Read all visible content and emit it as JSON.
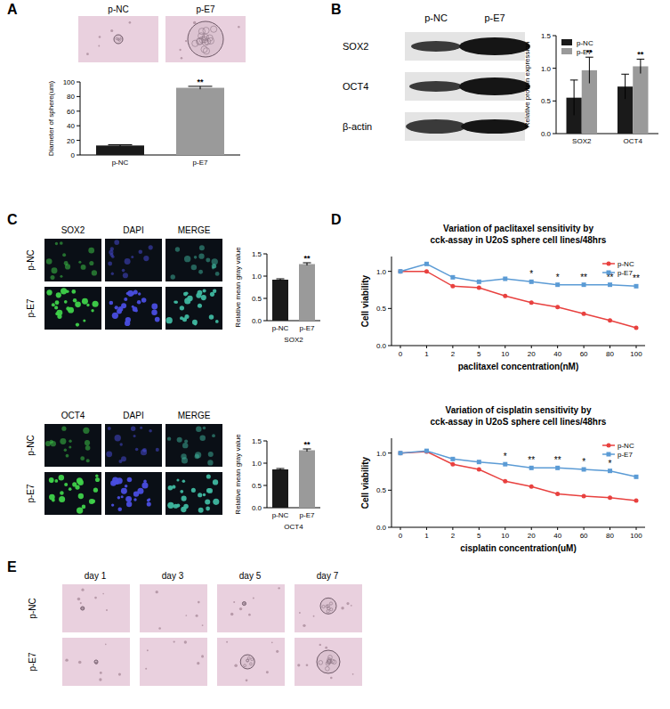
{
  "figure": {
    "panel_labels": [
      "A",
      "B",
      "C",
      "D",
      "E"
    ],
    "a_images": [
      "p-NC",
      "p-E7"
    ],
    "b_blot": {
      "columns": [
        "p-NC",
        "p-E7"
      ],
      "rows": [
        "SOX2",
        "OCT4",
        "β-actin"
      ]
    },
    "c_if": [
      {
        "headers": [
          "SOX2",
          "DAPI",
          "MERGE"
        ],
        "rows": [
          "p-NC",
          "p-E7"
        ]
      },
      {
        "headers": [
          "OCT4",
          "DAPI",
          "MERGE"
        ],
        "rows": [
          "p-NC",
          "p-E7"
        ]
      }
    ],
    "e_timecourse": {
      "columns": [
        "day 1",
        "day 3",
        "day 5",
        "day 7"
      ],
      "rows": [
        "p-NC",
        "p-E7"
      ]
    }
  },
  "chart_data": [
    {
      "type": "bar",
      "categories": [
        "p-NC",
        "p-E7"
      ],
      "values": [
        13,
        92
      ],
      "errors": [
        1,
        2
      ],
      "annotations": [
        null,
        "**"
      ],
      "colors": [
        "#1a1a1a",
        "#9a9a9a"
      ],
      "ylabel": "Diameter of sphere(um)",
      "ylim": [
        0,
        100
      ],
      "yticks": [
        0,
        20,
        40,
        60,
        80,
        100
      ]
    },
    {
      "type": "bar",
      "categories": [
        "SOX2",
        "OCT4"
      ],
      "legend": "upper left",
      "series": [
        {
          "name": "p-NC",
          "color": "#1a1a1a",
          "values": [
            0.55,
            0.72
          ],
          "errors": [
            0.27,
            0.19
          ]
        },
        {
          "name": "p-E7",
          "color": "#9a9a9a",
          "values": [
            0.97,
            1.03
          ],
          "errors": [
            0.2,
            0.11
          ],
          "annotations": [
            "**",
            "**"
          ]
        }
      ],
      "ylabel": "Relative protein expression",
      "ylim": [
        0,
        1.5
      ],
      "yticks": [
        {
          "value": 0,
          "label": "0.0"
        },
        0.5,
        {
          "value": 1,
          "label": "1.0"
        },
        1.5
      ]
    },
    {
      "type": "bar",
      "categories": [
        "p-NC",
        "p-E7"
      ],
      "values": [
        0.92,
        1.27
      ],
      "errors": [
        0.02,
        0.03
      ],
      "annotations": [
        null,
        "**"
      ],
      "colors": [
        "#1a1a1a",
        "#9a9a9a"
      ],
      "ylabel": "Relative mean gray value",
      "xlabel": "SOX2",
      "ylim": [
        0,
        1.5
      ],
      "yticks": [
        {
          "value": 0,
          "label": "0.0"
        },
        0.5,
        {
          "value": 1,
          "label": "1.0"
        },
        1.5
      ]
    },
    {
      "type": "bar",
      "categories": [
        "p-NC",
        "p-E7"
      ],
      "values": [
        0.86,
        1.29
      ],
      "errors": [
        0.02,
        0.03
      ],
      "annotations": [
        null,
        "**"
      ],
      "colors": [
        "#1a1a1a",
        "#9a9a9a"
      ],
      "ylabel": "Relative mean gray value",
      "xlabel": "OCT4",
      "ylim": [
        0,
        1.5
      ],
      "yticks": [
        {
          "value": 0,
          "label": "0.0"
        },
        0.5,
        {
          "value": 1,
          "label": "1.0"
        },
        1.5
      ]
    },
    {
      "type": "line",
      "title": "Variation of paclitaxel sensitivity by cck-assay in U2oS sphere cell lines/48hrs",
      "categories": [
        "0",
        "1",
        "2",
        "5",
        "10",
        "20",
        "40",
        "60",
        "80",
        "100"
      ],
      "series": [
        {
          "name": "p-NC",
          "color": "#e8413f",
          "marker": "circle",
          "values": [
            1.0,
            1.0,
            0.8,
            0.78,
            0.67,
            0.58,
            0.52,
            0.43,
            0.34,
            0.24
          ]
        },
        {
          "name": "p-E7",
          "color": "#5b9bd5",
          "marker": "square",
          "values": [
            1.0,
            1.1,
            0.92,
            0.86,
            0.9,
            0.86,
            0.82,
            0.82,
            0.82,
            0.8
          ]
        }
      ],
      "annotations": [
        null,
        null,
        null,
        null,
        null,
        "*",
        "*",
        "**",
        "**",
        "**"
      ],
      "xlabel": "paclitaxel concentration(nM)",
      "ylabel": "Cell viability",
      "legend": "upper right",
      "ylim": [
        0,
        1.2
      ],
      "yticks": [
        {
          "value": 0,
          "label": "0.0"
        },
        0.5,
        {
          "value": 1,
          "label": "1.0"
        }
      ]
    },
    {
      "type": "line",
      "title": "Variation of cisplatin sensitivity by cck-assay in U2oS sphere cell lines/48hrs",
      "categories": [
        "0",
        "1",
        "2",
        "5",
        "10",
        "20",
        "40",
        "60",
        "80",
        "100"
      ],
      "series": [
        {
          "name": "p-NC",
          "color": "#e8413f",
          "marker": "circle",
          "values": [
            1.0,
            1.02,
            0.85,
            0.78,
            0.62,
            0.55,
            0.45,
            0.42,
            0.4,
            0.36
          ]
        },
        {
          "name": "p-E7",
          "color": "#5b9bd5",
          "marker": "square",
          "values": [
            1.0,
            1.03,
            0.92,
            0.88,
            0.85,
            0.8,
            0.8,
            0.78,
            0.76,
            0.68
          ]
        }
      ],
      "annotations": [
        null,
        null,
        null,
        null,
        "*",
        "**",
        "**",
        "*",
        "*",
        null
      ],
      "xlabel": "cisplatin concentration(uM)",
      "ylabel": "Cell viability",
      "legend": "upper right",
      "ylim": [
        0,
        1.2
      ],
      "yticks": [
        {
          "value": 0,
          "label": "0.0"
        },
        0.5,
        {
          "value": 1,
          "label": "1.0"
        }
      ]
    }
  ]
}
